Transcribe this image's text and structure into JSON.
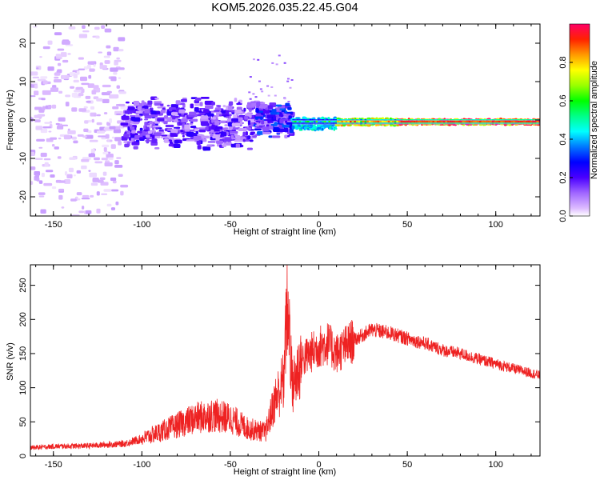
{
  "title": "KOM5.2026.035.22.45.G04",
  "chart_data": [
    {
      "type": "heatmap",
      "xlabel": "Height of straight line (km)",
      "ylabel": "Frequency (Hz)",
      "xlim": [
        -163,
        125
      ],
      "ylim": [
        -25,
        25
      ],
      "xticks": [
        -150,
        -100,
        -50,
        0,
        50,
        100
      ],
      "yticks": [
        -20,
        -10,
        0,
        10,
        20
      ],
      "colorbar": {
        "label": "Normalized spectral amplitude",
        "range": [
          0,
          1
        ],
        "ticks": [
          "0.0",
          "0.2",
          "0.4",
          "0.6",
          "0.8"
        ],
        "tick_values": [
          0,
          0.2,
          0.4,
          0.6,
          0.8
        ]
      },
      "ridge": [
        {
          "x_range": [
            -163,
            -110
          ],
          "freq": 0,
          "freq_spread": 24,
          "amplitude": 0.05
        },
        {
          "x_range": [
            -110,
            -35
          ],
          "freq": -1,
          "freq_spread": 6,
          "amplitude": 0.17
        },
        {
          "x_range": [
            -35,
            -15
          ],
          "freq": 0,
          "freq_spread": 4,
          "amplitude": 0.25
        },
        {
          "x_range": [
            -15,
            10
          ],
          "freq": -1,
          "freq_spread": 1.5,
          "amplitude": 0.45
        },
        {
          "x_range": [
            10,
            45
          ],
          "freq": -0.5,
          "freq_spread": 0.8,
          "amplitude": 0.75
        },
        {
          "x_range": [
            45,
            125
          ],
          "freq": -0.5,
          "freq_spread": 0.6,
          "amplitude": 0.9
        }
      ]
    },
    {
      "type": "line",
      "xlabel": "Height of straight line (km)",
      "ylabel": "SNR (v/v)",
      "xlim": [
        -163,
        125
      ],
      "ylim": [
        0,
        280
      ],
      "xticks": [
        -150,
        -100,
        -50,
        0,
        50,
        100
      ],
      "yticks": [
        0,
        50,
        100,
        150,
        200,
        250
      ],
      "series": [
        {
          "name": "SNR",
          "color": "#ee2222",
          "x": [
            -163,
            -150,
            -130,
            -110,
            -100,
            -90,
            -80,
            -70,
            -60,
            -50,
            -40,
            -30,
            -25,
            -20,
            -18,
            -15,
            -10,
            -5,
            0,
            5,
            10,
            20,
            30,
            40,
            50,
            60,
            70,
            80,
            90,
            100,
            110,
            125
          ],
          "y": [
            12,
            14,
            15,
            18,
            25,
            35,
            45,
            55,
            60,
            55,
            40,
            35,
            80,
            110,
            280,
            100,
            140,
            150,
            160,
            165,
            150,
            170,
            185,
            180,
            172,
            165,
            155,
            150,
            142,
            135,
            128,
            118
          ]
        }
      ]
    }
  ]
}
